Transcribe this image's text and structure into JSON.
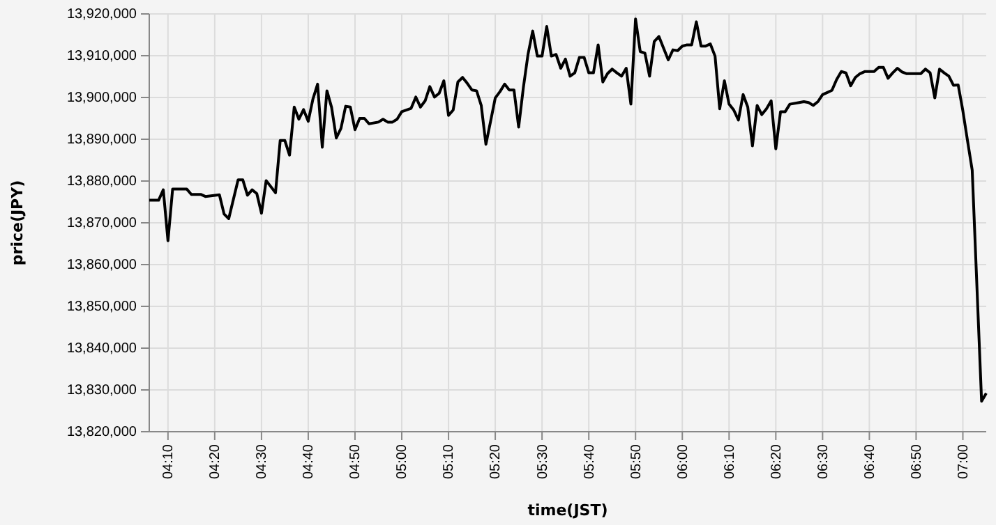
{
  "chart_data": {
    "type": "line",
    "xlabel": "time(JST)",
    "ylabel": "price(JPY)",
    "grid": true,
    "line_style": "solid",
    "marker": "none",
    "xlim": [
      4.1,
      7.0833
    ],
    "ylim": [
      13820000,
      13920000
    ],
    "xticks": [
      {
        "value": 4.1667,
        "label": "04:10"
      },
      {
        "value": 4.3333,
        "label": "04:20"
      },
      {
        "value": 4.5,
        "label": "04:30"
      },
      {
        "value": 4.6667,
        "label": "04:40"
      },
      {
        "value": 4.8333,
        "label": "04:50"
      },
      {
        "value": 5,
        "label": "05:00"
      },
      {
        "value": 5.1667,
        "label": "05:10"
      },
      {
        "value": 5.3333,
        "label": "05:20"
      },
      {
        "value": 5.5,
        "label": "05:30"
      },
      {
        "value": 5.6667,
        "label": "05:40"
      },
      {
        "value": 5.8333,
        "label": "05:50"
      },
      {
        "value": 6,
        "label": "06:00"
      },
      {
        "value": 6.1667,
        "label": "06:10"
      },
      {
        "value": 6.3333,
        "label": "06:20"
      },
      {
        "value": 6.5,
        "label": "06:30"
      },
      {
        "value": 6.6667,
        "label": "06:40"
      },
      {
        "value": 6.8333,
        "label": "06:50"
      },
      {
        "value": 7,
        "label": "07:00"
      }
    ],
    "yticks": [
      {
        "value": 13820000,
        "label": "13,820,000"
      },
      {
        "value": 13830000,
        "label": "13,830,000"
      },
      {
        "value": 13840000,
        "label": "13,840,000"
      },
      {
        "value": 13850000,
        "label": "13,850,000"
      },
      {
        "value": 13860000,
        "label": "13,860,000"
      },
      {
        "value": 13870000,
        "label": "13,870,000"
      },
      {
        "value": 13880000,
        "label": "13,880,000"
      },
      {
        "value": 13890000,
        "label": "13,890,000"
      },
      {
        "value": 13900000,
        "label": "13,900,000"
      },
      {
        "value": 13910000,
        "label": "13,910,000"
      },
      {
        "value": 13920000,
        "label": "13,920,000"
      }
    ],
    "series": [
      {
        "color": "#000000",
        "x": [
          4.1,
          4.1333,
          4.15,
          4.1667,
          4.1833,
          4.2333,
          4.25,
          4.2833,
          4.3,
          4.35,
          4.3667,
          4.3833,
          4.4167,
          4.4333,
          4.45,
          4.4667,
          4.4833,
          4.5,
          4.5167,
          4.55,
          4.5667,
          4.5833,
          4.6,
          4.6167,
          4.6333,
          4.65,
          4.6667,
          4.6833,
          4.7,
          4.7167,
          4.7333,
          4.75,
          4.7667,
          4.7833,
          4.8,
          4.8167,
          4.8333,
          4.85,
          4.8667,
          4.8833,
          4.9167,
          4.9333,
          4.95,
          4.9667,
          4.9833,
          5,
          5.0333,
          5.05,
          5.0667,
          5.0833,
          5.1,
          5.1167,
          5.1333,
          5.15,
          5.1667,
          5.1833,
          5.2,
          5.2167,
          5.2333,
          5.25,
          5.2667,
          5.2833,
          5.3,
          5.3167,
          5.3333,
          5.35,
          5.3667,
          5.3833,
          5.4,
          5.4167,
          5.4333,
          5.45,
          5.4667,
          5.4833,
          5.5,
          5.5167,
          5.5333,
          5.55,
          5.5667,
          5.5833,
          5.6,
          5.6167,
          5.6333,
          5.65,
          5.6667,
          5.6833,
          5.7,
          5.7167,
          5.7333,
          5.75,
          5.7667,
          5.7833,
          5.8,
          5.8167,
          5.8333,
          5.85,
          5.8667,
          5.8833,
          5.9,
          5.9167,
          5.9333,
          5.95,
          5.9667,
          5.9833,
          6,
          6.0167,
          6.0333,
          6.05,
          6.0667,
          6.0833,
          6.1,
          6.1167,
          6.1333,
          6.15,
          6.1667,
          6.1833,
          6.2,
          6.2167,
          6.2333,
          6.25,
          6.2667,
          6.2833,
          6.3,
          6.3167,
          6.3333,
          6.35,
          6.3667,
          6.3833,
          6.4167,
          6.4333,
          6.45,
          6.4667,
          6.4833,
          6.5,
          6.5167,
          6.5333,
          6.55,
          6.5667,
          6.5833,
          6.6,
          6.6167,
          6.6333,
          6.65,
          6.6833,
          6.7,
          6.7167,
          6.7333,
          6.75,
          6.7667,
          6.7833,
          6.8,
          6.8333,
          6.85,
          6.8667,
          6.8833,
          6.9,
          6.9167,
          6.9333,
          6.95,
          6.9667,
          6.9833,
          7,
          7.0167,
          7.0333,
          7.0667,
          7.0833
        ],
        "values": [
          13875400,
          13875400,
          13877900,
          13865700,
          13878100,
          13878100,
          13876800,
          13876800,
          13876300,
          13876700,
          13872100,
          13871000,
          13880300,
          13880300,
          13876600,
          13877900,
          13877000,
          13872300,
          13880100,
          13877200,
          13889700,
          13889700,
          13886200,
          13897700,
          13894800,
          13897100,
          13894300,
          13899600,
          13903200,
          13888100,
          13901600,
          13897600,
          13890300,
          13892600,
          13897900,
          13897700,
          13892300,
          13895000,
          13895000,
          13893700,
          13894100,
          13894800,
          13894100,
          13894100,
          13894800,
          13896600,
          13897400,
          13900100,
          13897700,
          13899200,
          13902600,
          13900100,
          13901000,
          13904000,
          13895700,
          13897000,
          13903700,
          13904800,
          13903400,
          13901800,
          13901600,
          13898100,
          13888800,
          13894300,
          13899900,
          13901400,
          13903200,
          13901800,
          13901800,
          13892900,
          13902300,
          13910300,
          13915900,
          13909900,
          13909900,
          13917000,
          13909900,
          13910300,
          13907000,
          13909200,
          13905100,
          13905900,
          13909600,
          13909600,
          13905900,
          13905900,
          13912600,
          13903700,
          13905700,
          13906800,
          13905900,
          13905100,
          13907000,
          13898400,
          13918800,
          13911000,
          13910600,
          13905100,
          13913400,
          13914600,
          13911800,
          13909000,
          13911400,
          13911200,
          13912300,
          13912600,
          13912600,
          13918100,
          13912300,
          13912300,
          13912800,
          13909900,
          13897300,
          13904000,
          13898400,
          13897000,
          13894600,
          13900700,
          13897700,
          13888400,
          13898100,
          13895900,
          13897300,
          13899200,
          13887700,
          13896600,
          13896600,
          13898400,
          13898800,
          13899000,
          13898800,
          13898100,
          13899000,
          13900700,
          13901200,
          13901700,
          13904300,
          13906200,
          13905900,
          13902800,
          13904800,
          13905700,
          13906200,
          13906200,
          13907200,
          13907200,
          13904600,
          13905900,
          13907000,
          13906100,
          13905700,
          13905700,
          13905700,
          13906800,
          13905900,
          13899900,
          13906800,
          13905900,
          13905100,
          13902900,
          13903000,
          13896800,
          13889600,
          13882600,
          13827300,
          13829200
        ]
      }
    ]
  }
}
